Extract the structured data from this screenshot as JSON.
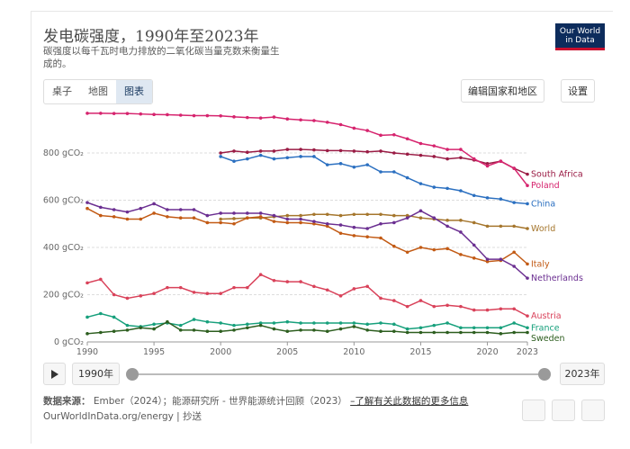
{
  "header": {
    "title": "发电碳强度，1990年至2023年",
    "subtitle": "碳强度以每千瓦时电力排放的二氧化碳当量克数来衡量生成的。",
    "logo": "Our World in Data"
  },
  "tabs": [
    "桌子",
    "地图",
    "图表"
  ],
  "buttons": {
    "edit": "编辑国家和地区",
    "settings": "设置"
  },
  "timeline": {
    "start": "1990年",
    "end": "2023年"
  },
  "footer": {
    "source_label": "数据来源：",
    "source": "Ember（2024）；能源研究所 - 世界能源统计回顾（2023）",
    "more": "–了解有关此数据的更多信息",
    "url": "OurWorldInData.org/energy | 抄送"
  },
  "chart_data": {
    "type": "line",
    "x": [
      1990,
      1991,
      1992,
      1993,
      1994,
      1995,
      1996,
      1997,
      1998,
      1999,
      2000,
      2001,
      2002,
      2003,
      2004,
      2005,
      2006,
      2007,
      2008,
      2009,
      2010,
      2011,
      2012,
      2013,
      2014,
      2015,
      2016,
      2017,
      2018,
      2019,
      2020,
      2021,
      2022,
      2023
    ],
    "xlim": [
      1990,
      2023
    ],
    "xticks": [
      1990,
      1995,
      2000,
      2005,
      2010,
      2015,
      2020,
      2023
    ],
    "ylim": [
      0,
      1000
    ],
    "yticks": [
      {
        "value": 0,
        "label": "0 gCO₂"
      },
      {
        "value": 200,
        "label": "200 gCO₂"
      },
      {
        "value": 400,
        "label": "400 gCO₂"
      },
      {
        "value": 600,
        "label": "600 gCO₂"
      },
      {
        "value": 800,
        "label": "800 gCO₂"
      }
    ],
    "grid": true,
    "series": [
      {
        "name": "South Africa",
        "color": "#9a1c45",
        "values": [
          null,
          null,
          null,
          null,
          null,
          null,
          null,
          null,
          null,
          null,
          800,
          808,
          803,
          808,
          808,
          815,
          815,
          813,
          810,
          810,
          808,
          805,
          808,
          800,
          795,
          790,
          785,
          775,
          780,
          770,
          755,
          765,
          735,
          710
        ]
      },
      {
        "name": "Poland",
        "color": "#d6246e",
        "values": [
          968,
          968,
          967,
          967,
          965,
          963,
          962,
          960,
          958,
          958,
          957,
          953,
          950,
          948,
          952,
          944,
          940,
          937,
          930,
          920,
          905,
          895,
          875,
          877,
          860,
          840,
          830,
          815,
          815,
          775,
          745,
          765,
          735,
          662
        ]
      },
      {
        "name": "China",
        "color": "#2a6fc0",
        "values": [
          null,
          null,
          null,
          null,
          null,
          null,
          null,
          null,
          null,
          null,
          785,
          765,
          775,
          790,
          775,
          780,
          785,
          785,
          750,
          755,
          740,
          750,
          720,
          720,
          695,
          670,
          655,
          650,
          640,
          620,
          610,
          605,
          590,
          585
        ]
      },
      {
        "name": "World",
        "color": "#a5762d",
        "values": [
          null,
          null,
          null,
          null,
          null,
          null,
          null,
          null,
          null,
          null,
          520,
          522,
          525,
          525,
          530,
          535,
          535,
          540,
          540,
          535,
          540,
          540,
          540,
          535,
          535,
          525,
          520,
          515,
          515,
          505,
          490,
          490,
          490,
          480
        ]
      },
      {
        "name": "Italy",
        "color": "#c25a14",
        "values": [
          565,
          535,
          530,
          520,
          520,
          545,
          530,
          525,
          525,
          505,
          505,
          500,
          525,
          530,
          510,
          505,
          505,
          500,
          490,
          460,
          450,
          445,
          440,
          405,
          380,
          400,
          390,
          395,
          370,
          355,
          340,
          345,
          380,
          330
        ]
      },
      {
        "name": "Netherlands",
        "color": "#6b2f91",
        "values": [
          590,
          570,
          560,
          550,
          565,
          585,
          560,
          560,
          560,
          535,
          545,
          545,
          545,
          545,
          535,
          520,
          520,
          510,
          500,
          495,
          485,
          480,
          500,
          505,
          525,
          555,
          525,
          490,
          465,
          410,
          350,
          350,
          320,
          270
        ]
      },
      {
        "name": "Austria",
        "color": "#d9425a",
        "values": [
          250,
          265,
          200,
          185,
          195,
          205,
          230,
          230,
          210,
          205,
          205,
          230,
          230,
          285,
          260,
          255,
          255,
          235,
          220,
          195,
          225,
          235,
          185,
          175,
          150,
          175,
          150,
          155,
          150,
          135,
          135,
          140,
          140,
          110
        ]
      },
      {
        "name": "France",
        "color": "#17a07c",
        "values": [
          105,
          120,
          105,
          70,
          65,
          75,
          80,
          70,
          95,
          85,
          80,
          70,
          75,
          80,
          80,
          85,
          80,
          80,
          80,
          80,
          80,
          75,
          80,
          75,
          55,
          60,
          70,
          80,
          60,
          60,
          60,
          60,
          80,
          60
        ]
      },
      {
        "name": "Sweden",
        "color": "#2d5e1f",
        "values": [
          35,
          40,
          45,
          50,
          60,
          55,
          85,
          50,
          50,
          45,
          45,
          50,
          60,
          70,
          55,
          45,
          50,
          50,
          45,
          55,
          65,
          50,
          45,
          45,
          40,
          40,
          40,
          40,
          40,
          40,
          40,
          35,
          40,
          40
        ]
      }
    ]
  }
}
